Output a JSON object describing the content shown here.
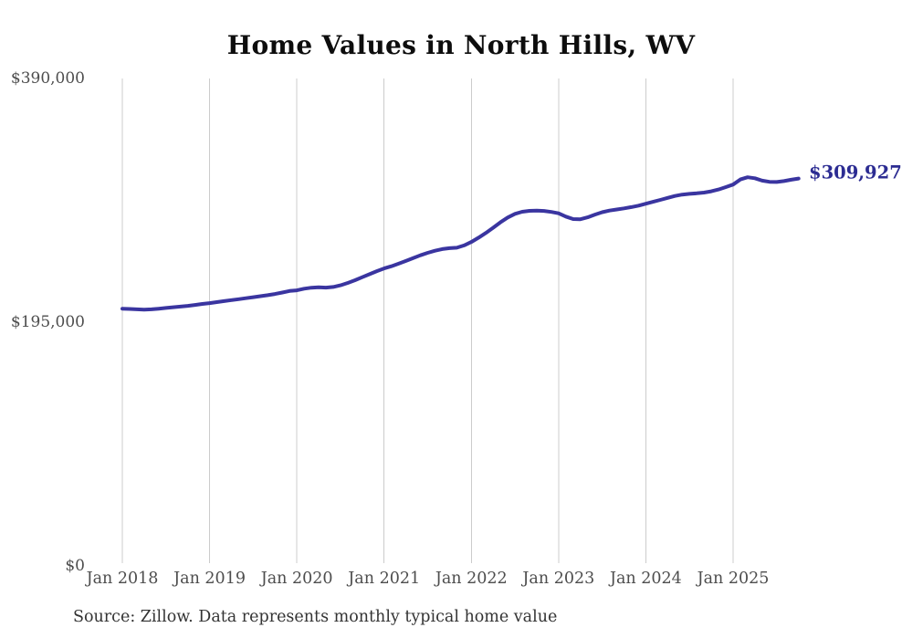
{
  "chart": {
    "title": "Home Values in North Hills, WV",
    "source_note": "Source: Zillow. Data represents monthly typical home value",
    "end_value_label": "$309,927"
  },
  "colors": {
    "background": "#ffffff",
    "line": "#3a35a0",
    "end_label": "#2c2c92",
    "gridline": "#cccccc",
    "axis_text": "#4d4d4d",
    "title_text": "#0d0d0d",
    "source_text": "#333333"
  },
  "chart_data": {
    "type": "line",
    "title": "Home Values in North Hills, WV",
    "xlabel": "",
    "ylabel": "",
    "ylim": [
      0,
      390000
    ],
    "grid": "vertical-only",
    "legend": "none",
    "x_tick_labels": [
      "Jan 2018",
      "Jan 2019",
      "Jan 2020",
      "Jan 2021",
      "Jan 2022",
      "Jan 2023",
      "Jan 2024",
      "Jan 2025"
    ],
    "y_ticks": [
      {
        "label": "$390,000",
        "value": 390000
      },
      {
        "label": "$195,000",
        "value": 195000
      },
      {
        "label": "$0",
        "value": 0
      }
    ],
    "series": [
      {
        "name": "Typical home value",
        "start_month": "2018-01",
        "end_month": "2025-10",
        "frequency": "monthly",
        "values": [
          205800,
          205600,
          205300,
          205100,
          205300,
          205800,
          206400,
          207000,
          207500,
          208100,
          208800,
          209600,
          210300,
          211100,
          211900,
          212700,
          213400,
          214200,
          215000,
          215800,
          216600,
          217600,
          218700,
          220000,
          220500,
          221800,
          222600,
          222900,
          222700,
          223200,
          224500,
          226400,
          228600,
          231000,
          233400,
          235800,
          238000,
          239800,
          241800,
          244000,
          246300,
          248500,
          250500,
          252200,
          253500,
          254200,
          254600,
          256400,
          259200,
          262600,
          266400,
          270600,
          274900,
          278800,
          281700,
          283400,
          284100,
          284300,
          284000,
          283200,
          282100,
          279500,
          277500,
          277400,
          278900,
          281100,
          283000,
          284300,
          285200,
          286100,
          287100,
          288300,
          289800,
          291300,
          292900,
          294500,
          296000,
          297100,
          297700,
          298100,
          298700,
          299700,
          301200,
          303100,
          305100,
          309200,
          311000,
          310200,
          308300,
          307300,
          307200,
          307900,
          309000,
          309927
        ]
      }
    ],
    "end_annotation": {
      "label": "$309,927",
      "value": 309927,
      "month": "2025-10"
    }
  }
}
